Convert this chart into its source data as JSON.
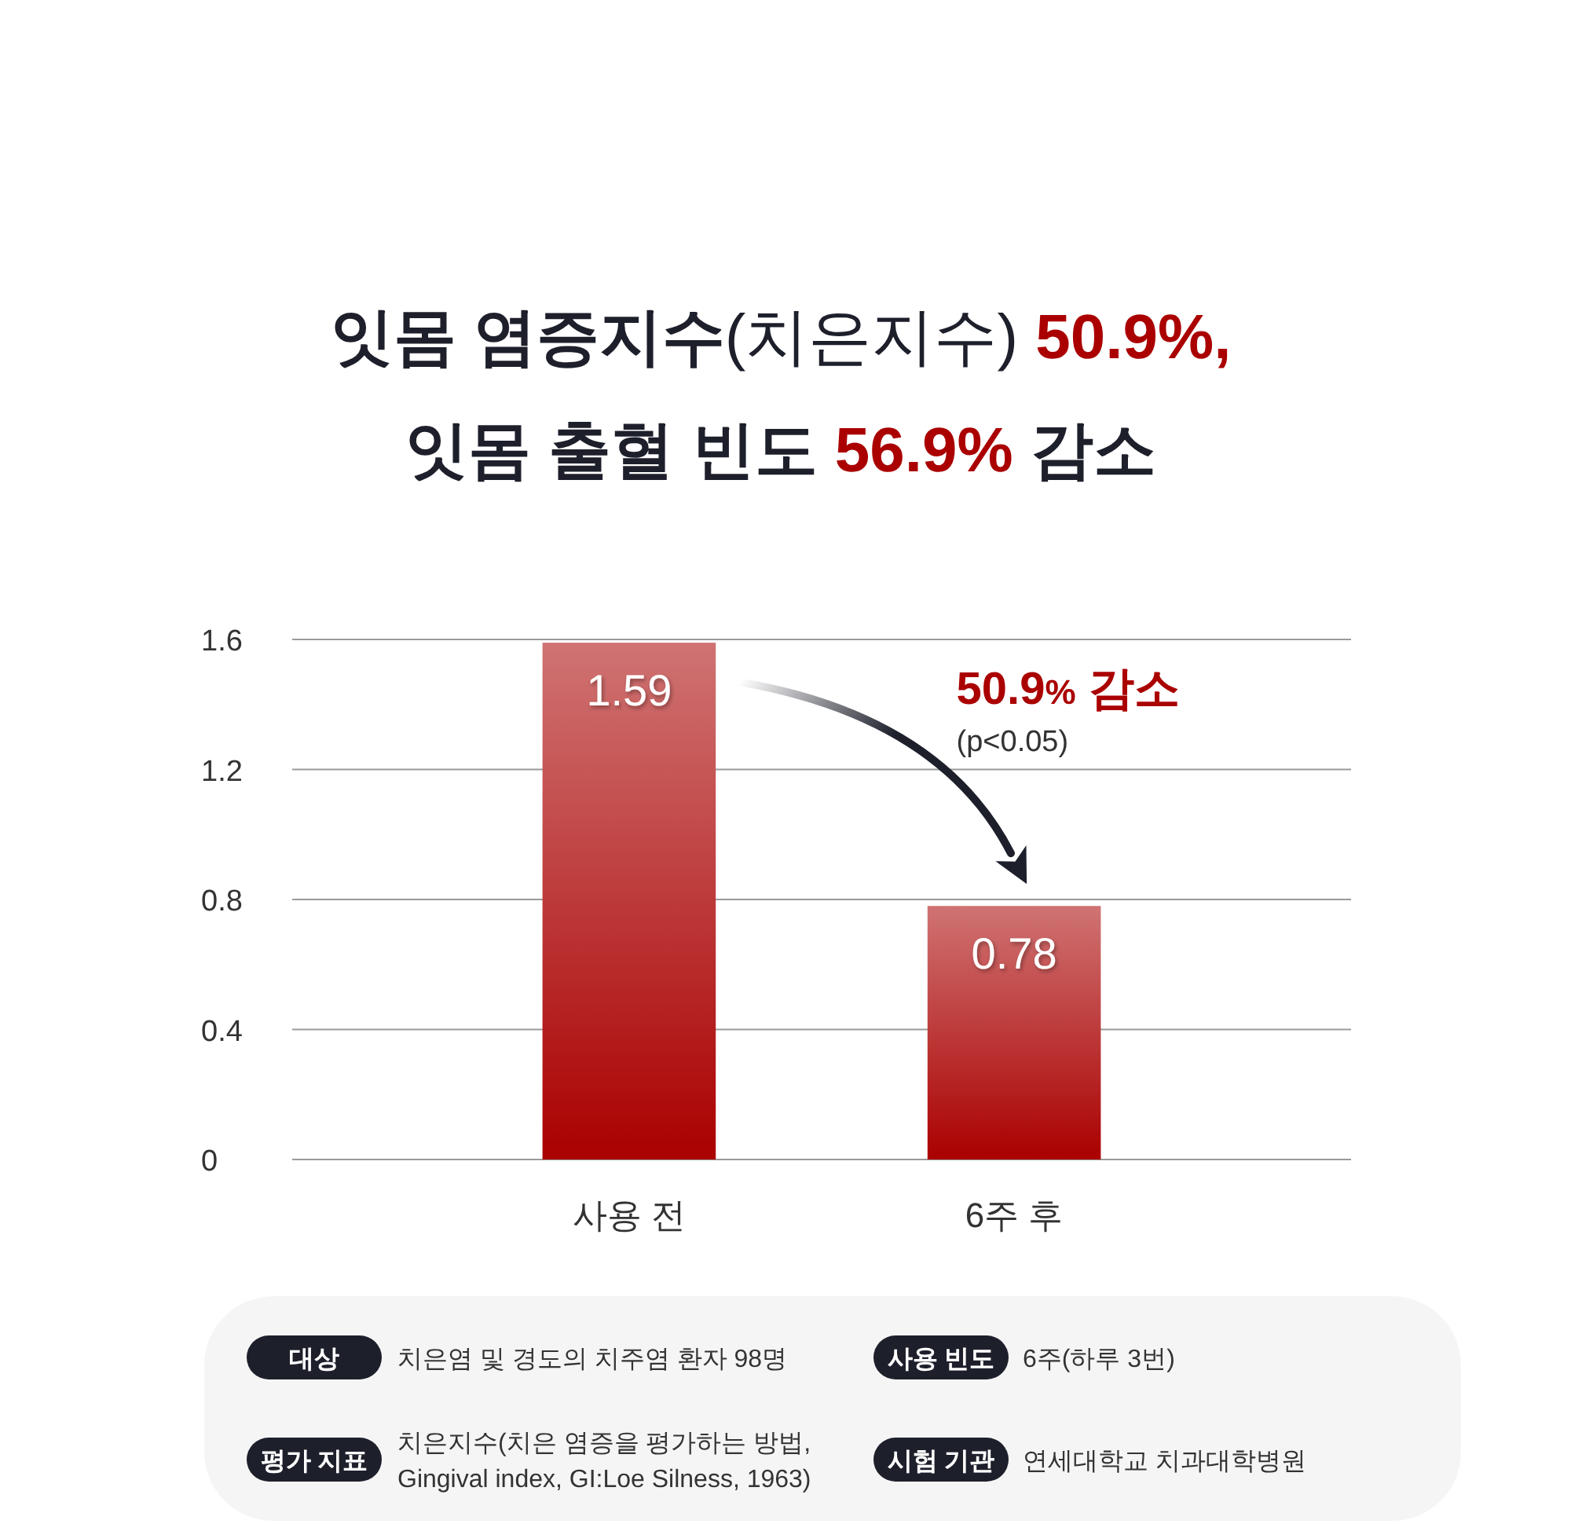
{
  "chart_data": [
    {
      "type": "bar",
      "title": "잇몸 염증지수(치은지수) 50.9%, 잇몸 출혈 빈도 56.9% 감소",
      "categories": [
        "사용 전",
        "6주 후"
      ],
      "values": [
        1.59,
        0.78
      ],
      "color": "#aa0000",
      "ylim": [
        0,
        1.6
      ],
      "yticks": [
        0,
        0.4,
        0.8,
        1.2,
        1.6
      ],
      "grid": "y",
      "data_labels": true,
      "annotations": [
        "50.9% 감소",
        "(p<0.05)"
      ]
    },
    {
      "type": "other",
      "annotations": [
        "대상",
        "치은염 및 경도의 치주염 환자 98명",
        "사용 빈도",
        "6주(하루 3번)",
        "평가 지표",
        "치은지수(치은 염증을 평가하는 방법, Gingival index, GI:Loe Silness, 1963)",
        "시험 기관",
        "연세대학교 치과대학병원"
      ]
    }
  ]
}
